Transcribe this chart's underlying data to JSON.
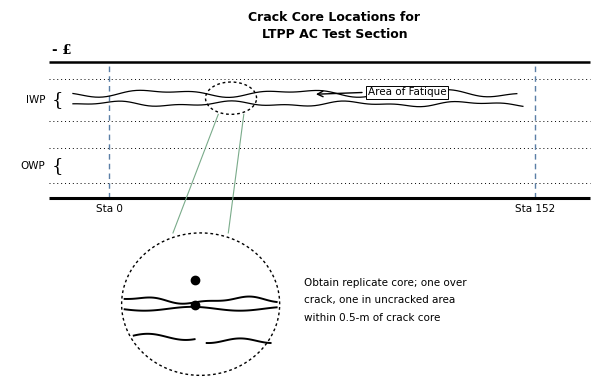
{
  "title_line1": "Crack Core Locations for",
  "title_line2": "LTPP AC Test Section",
  "centerline_label": "- £",
  "iwp_label": "IWP",
  "owp_label": "OWP",
  "sta0_label": "Sta 0",
  "sta152_label": "Sta 152",
  "area_fatigue_label": "Area of Fatique",
  "core_text_line1": "Obtain replicate core; one over",
  "core_text_line2": "crack, one in uncracked area",
  "core_text_line3": "within 0.5-m of crack core",
  "bg_color": "#ffffff",
  "line_color": "#000000",
  "dashed_color": "#5b7fa6",
  "connect_color": "#7aab8a"
}
